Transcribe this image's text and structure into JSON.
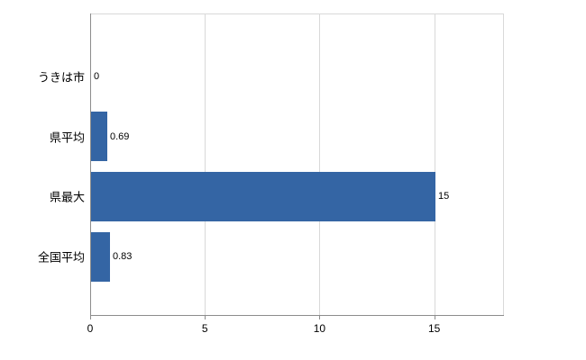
{
  "chart_data": {
    "type": "bar",
    "orientation": "horizontal",
    "title": "",
    "xlabel": "",
    "ylabel": "",
    "categories": [
      "うきは市",
      "県平均",
      "県最大",
      "全国平均"
    ],
    "values": [
      0,
      0.69,
      15,
      0.83
    ],
    "value_labels": [
      "0",
      "0.69",
      "15",
      "0.83"
    ],
    "xlim": [
      0,
      18
    ],
    "xticks": [
      0,
      5,
      10,
      15
    ],
    "xtick_labels": [
      "0",
      "5",
      "10",
      "15"
    ],
    "grid": true,
    "legend": false,
    "colors": {
      "bar": "#3465A4",
      "gridline": "#d9d9d9",
      "axis": "#8c8c8c",
      "text": "#000000",
      "background": "#ffffff"
    }
  }
}
